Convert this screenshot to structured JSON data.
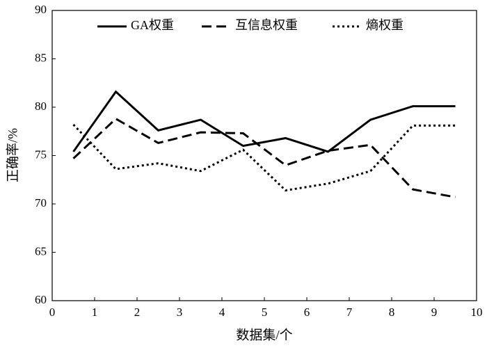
{
  "chart_data": {
    "type": "line",
    "x_label": "数据集/个",
    "y_label": "正确率/%",
    "x": [
      0.5,
      1.5,
      2.5,
      3.5,
      4.5,
      5.5,
      6.5,
      7.5,
      8.5,
      9.5
    ],
    "series": [
      {
        "name": "GA权重",
        "color": "#000000",
        "dash": "solid",
        "values": [
          75.4,
          81.6,
          77.6,
          78.7,
          76.0,
          76.8,
          75.4,
          78.7,
          80.1,
          80.1
        ]
      },
      {
        "name": "互信息权重",
        "color": "#000000",
        "dash": "dashed",
        "values": [
          74.7,
          78.8,
          76.3,
          77.4,
          77.3,
          74.0,
          75.5,
          76.1,
          71.5,
          70.7
        ]
      },
      {
        "name": "熵权重",
        "color": "#000000",
        "dash": "dotted",
        "values": [
          78.2,
          73.6,
          74.2,
          73.4,
          75.6,
          71.4,
          72.1,
          73.4,
          78.1,
          78.1
        ]
      }
    ],
    "xlim": [
      0,
      10
    ],
    "xticks": [
      0,
      1,
      2,
      3,
      4,
      5,
      6,
      7,
      8,
      9,
      10
    ],
    "ylim": [
      60,
      90
    ],
    "yticks": [
      60,
      65,
      70,
      75,
      80,
      85,
      90
    ],
    "grid": false,
    "legend": "top"
  }
}
